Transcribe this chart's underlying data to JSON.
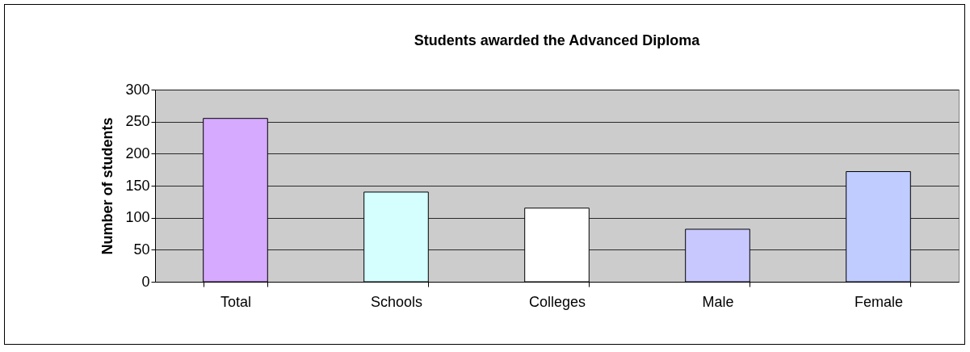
{
  "chart_data": {
    "type": "bar",
    "title": "Students awarded the Advanced Diploma",
    "ylabel": "Number of students",
    "categories": [
      "Total",
      "Schools",
      "Colleges",
      "Male",
      "Female"
    ],
    "values": [
      255,
      140,
      115,
      82,
      172
    ],
    "colors": [
      "#d5aaff",
      "#d5ffff",
      "#ffffff",
      "#c8c8ff",
      "#c0ccff"
    ],
    "ylim": [
      0,
      300
    ],
    "yticks": [
      0,
      50,
      100,
      150,
      200,
      250,
      300
    ],
    "grid": "y"
  }
}
